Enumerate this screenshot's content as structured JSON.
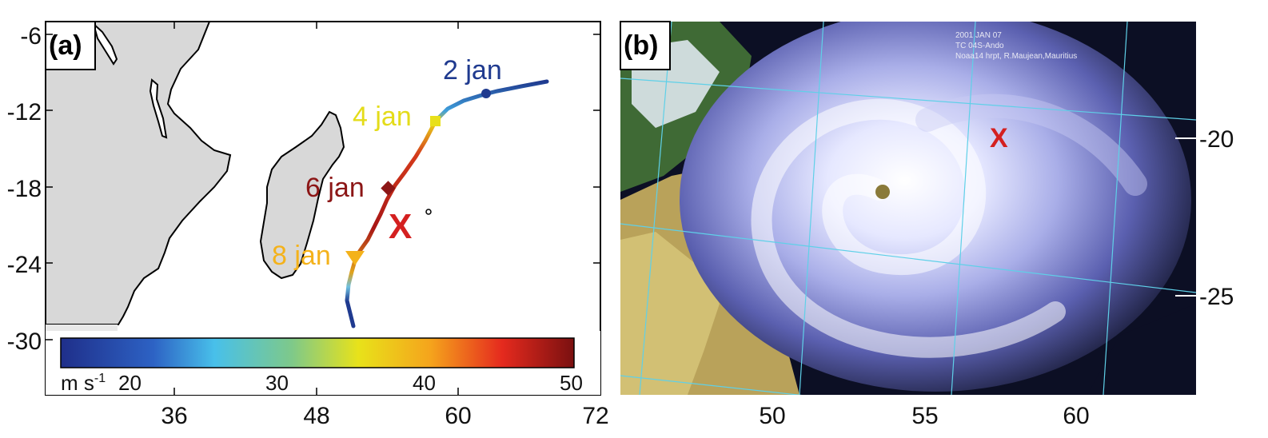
{
  "panel_a": {
    "label": "(a)",
    "y_ticks": [
      "-6",
      "-12",
      "-18",
      "-24",
      "-30"
    ],
    "x_ticks": [
      "36",
      "48",
      "60",
      "72"
    ],
    "track_labels": [
      {
        "text": "2 jan",
        "color": "#1f3a8f"
      },
      {
        "text": "4 jan",
        "color": "#e4dc1a"
      },
      {
        "text": "6 jan",
        "color": "#8c1616"
      },
      {
        "text": "8 jan",
        "color": "#f4b21b"
      }
    ],
    "marker_x": "X",
    "colorbar": {
      "unit_main": "m s",
      "unit_sup": "-1",
      "ticks": [
        "20",
        "30",
        "40",
        "50"
      ]
    }
  },
  "panel_b": {
    "label": "(b)",
    "y_ticks": [
      "-20",
      "-25"
    ],
    "x_ticks": [
      "50",
      "55",
      "60"
    ],
    "marker_x": "X",
    "caption_lines": [
      "2001 JAN 07",
      "TC 04S-Ando",
      "Noaa14 hrpt, R.Maujean,Mauritius"
    ]
  },
  "colors": {
    "land": "#d8d8d8",
    "track_low": "#1f3a8f",
    "track_high": "#b81b1b",
    "marker": "#d42020",
    "grid": "#5fd0e8"
  }
}
